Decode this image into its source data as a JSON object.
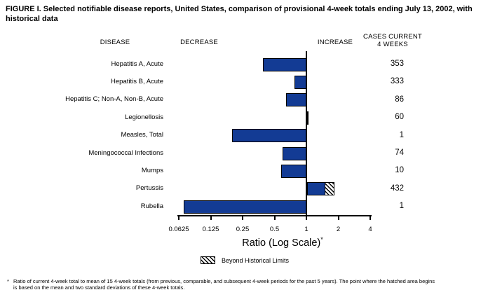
{
  "title": {
    "full": "FIGURE I. Selected notifiable disease reports, United States, comparison of provisional 4-week totals ending July 13, 2002, with historical data",
    "line1": "FIGURE I. Selected notifiable disease reports, United States, comparison of provisional 4-week totals ending July 13, 2002, with",
    "line2": "historical data"
  },
  "headers": {
    "disease": "DISEASE",
    "decrease": "DECREASE",
    "increase": "INCREASE",
    "cases": "CASES CURRENT\n4 WEEKS"
  },
  "axis": {
    "label": "Ratio (Log Scale)",
    "label_sup": "*"
  },
  "legend": {
    "label": "Beyond Historical Limits"
  },
  "footnote": {
    "marker": "*",
    "line1": "Ratio of current 4-week total to mean of 15 4-week totals (from previous, comparable, and subsequent 4-week periods for the past 5 years). The point where the hatched area begins",
    "line2": "is based on the mean and two standard deviations of these 4-week totals."
  },
  "chart_data": {
    "type": "bar",
    "orientation": "horizontal",
    "x_scale": "log2",
    "title": "FIGURE I. Selected notifiable disease reports, United States, comparison of provisional 4-week totals ending July 13, 2002, with historical data",
    "xlabel": "Ratio (Log Scale)*",
    "xlim": [
      0.0625,
      4
    ],
    "x_ticks": [
      "0.0625",
      "0.125",
      "0.25",
      "0.5",
      "1",
      "2",
      "4"
    ],
    "baseline_ratio": 1,
    "categories": [
      "Hepatitis A, Acute",
      "Hepatitis B, Acute",
      "Hepatitis C; Non-A, Non-B, Acute",
      "Legionellosis",
      "Measles, Total",
      "Meningococcal Infections",
      "Mumps",
      "Pertussis",
      "Rubella"
    ],
    "values": [
      0.39,
      0.77,
      0.64,
      1.03,
      0.2,
      0.6,
      0.58,
      1.83,
      0.07
    ],
    "cases_current_4_weeks": [
      353,
      333,
      86,
      60,
      1,
      74,
      10,
      432,
      1
    ],
    "beyond_historical_limits": {
      "category": "Pertussis",
      "hatch_from": 1.49,
      "hatch_to": 1.83
    },
    "bar_color": "#133b94",
    "legend": [
      {
        "label": "Beyond Historical Limits",
        "style": "hatched"
      }
    ],
    "grid": false,
    "legend_position": "bottom-center"
  }
}
